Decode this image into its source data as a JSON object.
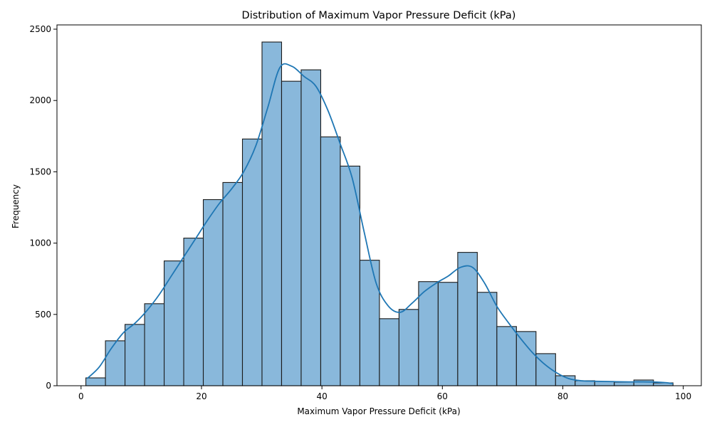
{
  "chart_data": {
    "type": "bar",
    "title": "Distribution of Maximum Vapor Pressure Deficit (kPa)",
    "xlabel": "Maximum Vapor Pressure Deficit (kPa)",
    "ylabel": "Frequency",
    "xlim": [
      -4,
      103
    ],
    "ylim": [
      0,
      2530
    ],
    "x_ticks": [
      0,
      20,
      40,
      60,
      80,
      100
    ],
    "y_ticks": [
      0,
      500,
      1000,
      1500,
      2000,
      2500
    ],
    "grid": false,
    "bin_edges": [
      0.8,
      4.05,
      7.3,
      10.55,
      13.8,
      17.05,
      20.3,
      23.55,
      26.8,
      30.05,
      33.3,
      36.55,
      39.8,
      43.05,
      46.3,
      49.55,
      52.8,
      56.05,
      59.3,
      62.55,
      65.8,
      69.05,
      72.3,
      75.55,
      78.8,
      82.05,
      85.3,
      88.55,
      91.8,
      95.05,
      98.3
    ],
    "values": [
      55,
      315,
      430,
      575,
      875,
      1035,
      1305,
      1425,
      1730,
      2410,
      2135,
      2215,
      1745,
      1540,
      880,
      470,
      535,
      730,
      725,
      935,
      655,
      415,
      380,
      225,
      70,
      35,
      30,
      25,
      40,
      20
    ],
    "kde": {
      "x": [
        1,
        3,
        5,
        7,
        9,
        11,
        13,
        15,
        17,
        19,
        21,
        23,
        25,
        27,
        29,
        31,
        33,
        35,
        37,
        39,
        41,
        43,
        45,
        47,
        49,
        51,
        53,
        55,
        57,
        59,
        61,
        63,
        65,
        67,
        69,
        71,
        73,
        75,
        77,
        79,
        81,
        83,
        85,
        87,
        89,
        91,
        93,
        95,
        97,
        98.3
      ],
      "y": [
        50,
        130,
        260,
        370,
        440,
        530,
        640,
        770,
        900,
        1030,
        1160,
        1280,
        1380,
        1500,
        1680,
        1950,
        2230,
        2240,
        2170,
        2100,
        1930,
        1700,
        1460,
        1080,
        720,
        560,
        515,
        580,
        660,
        720,
        770,
        830,
        830,
        720,
        560,
        440,
        330,
        230,
        150,
        90,
        50,
        35,
        32,
        30,
        28,
        27,
        27,
        26,
        22,
        15
      ]
    },
    "colors": {
      "bar": "#89b8db",
      "edge": "#1a1a1a",
      "kde": "#1f77b4"
    }
  }
}
